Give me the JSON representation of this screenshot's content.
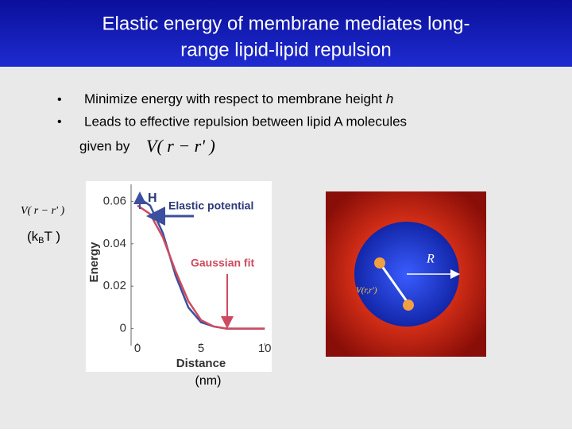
{
  "title_lines": [
    "Elastic energy of membrane mediates long-",
    "range lipid-lipid repulsion"
  ],
  "bullets": [
    {
      "text": "Minimize energy with respect to membrane height",
      "symbol": "h"
    },
    {
      "text": "Leads to effective repulsion between lipid A molecules",
      "continuation": "given by"
    }
  ],
  "formula": "V( r − r' )",
  "y_unit": [
    "(k",
    "B",
    "T )"
  ],
  "x_unit": "(nm)",
  "chart_data": {
    "type": "line",
    "xlabel": "Distance",
    "ylabel": "Energy",
    "annotations": [
      "H",
      "Elastic potential",
      "Gaussian fit"
    ],
    "xlim": [
      -0.5,
      10.3
    ],
    "ylim": [
      -0.008,
      0.068
    ],
    "xticks": [
      0,
      5,
      10
    ],
    "yticks": [
      0,
      0.02,
      0.04,
      0.06
    ],
    "series": [
      {
        "name": "Elastic potential",
        "color": "#3b4f9e",
        "x": [
          0,
          1,
          2,
          3,
          4,
          5,
          6,
          7,
          8,
          9,
          10
        ],
        "values": [
          0.062,
          0.058,
          0.045,
          0.025,
          0.01,
          0.003,
          0.001,
          0,
          0,
          0,
          0
        ]
      },
      {
        "name": "Gaussian fit",
        "color": "#cf4a5e",
        "x": [
          0,
          1,
          2,
          3,
          4,
          5,
          6,
          7,
          8,
          9,
          10
        ],
        "values": [
          0.058,
          0.054,
          0.043,
          0.027,
          0.013,
          0.004,
          0.001,
          0,
          0,
          0,
          0
        ]
      }
    ]
  },
  "diagram": {
    "radius_label": "R",
    "interaction_label": "V(r,r')"
  }
}
